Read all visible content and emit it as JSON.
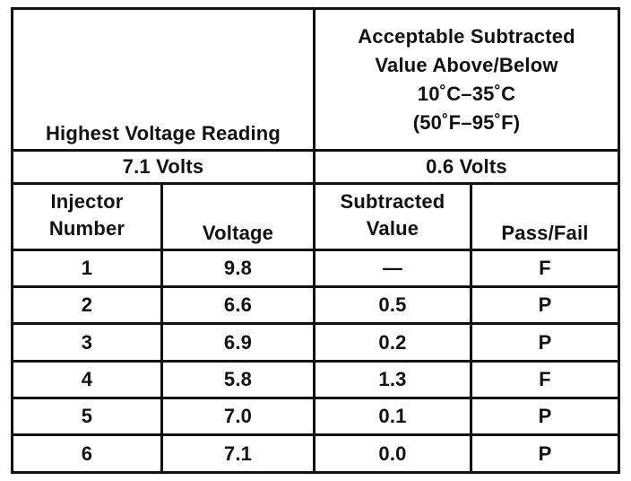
{
  "table": {
    "header": {
      "highest_voltage_label": "Highest Voltage Reading",
      "acceptable_line1": "Acceptable Subtracted",
      "acceptable_line2": "Value Above/Below",
      "acceptable_line3": "10˚C–35˚C",
      "acceptable_line4": "(50˚F–95˚F)"
    },
    "summary": {
      "highest_voltage_value": "7.1 Volts",
      "acceptable_value": "0.6 Volts"
    },
    "columns": {
      "injector_line1": "Injector",
      "injector_line2": "Number",
      "voltage": "Voltage",
      "subtracted_line1": "Subtracted",
      "subtracted_line2": "Value",
      "pass_fail": "Pass/Fail"
    },
    "rows": [
      {
        "injector": "1",
        "voltage": "9.8",
        "subtracted": "—",
        "result": "F"
      },
      {
        "injector": "2",
        "voltage": "6.6",
        "subtracted": "0.5",
        "result": "P"
      },
      {
        "injector": "3",
        "voltage": "6.9",
        "subtracted": "0.2",
        "result": "P"
      },
      {
        "injector": "4",
        "voltage": "5.8",
        "subtracted": "1.3",
        "result": "F"
      },
      {
        "injector": "5",
        "voltage": "7.0",
        "subtracted": "0.1",
        "result": "P"
      },
      {
        "injector": "6",
        "voltage": "7.1",
        "subtracted": "0.0",
        "result": "P"
      }
    ]
  }
}
